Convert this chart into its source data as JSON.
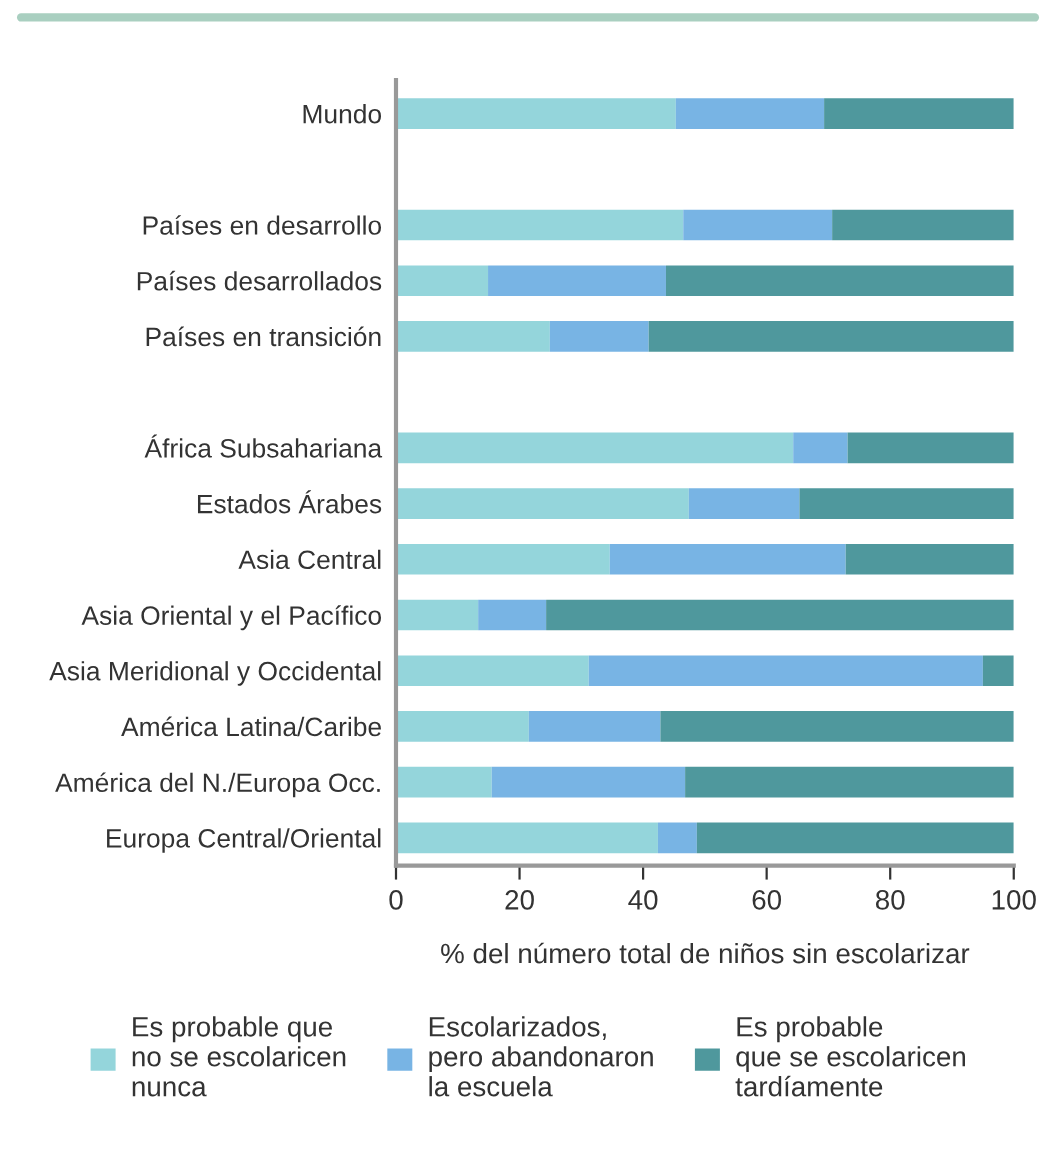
{
  "chart_data": {
    "type": "bar",
    "orientation": "horizontal",
    "stacked": true,
    "categories": [
      "Mundo",
      null,
      "Países en desarrollo",
      "Países desarrollados",
      "Países en transición",
      null,
      "África Subsahariana",
      "Estados Árabes",
      "Asia Central",
      "Asia Oriental y el Pacífico",
      "Asia Meridional y Occidental",
      "América Latina/Caribe",
      "América del N./Europa Occ.",
      "Europa Central/Oriental"
    ],
    "series": [
      {
        "name": "Es probable que\nno se escolaricen\nnunca",
        "color": "#94d5db",
        "values": [
          45.3,
          null,
          46.5,
          14.9,
          24.9,
          null,
          64.3,
          47.4,
          34.6,
          13.3,
          31.2,
          21.5,
          15.5,
          42.4
        ]
      },
      {
        "name": "Escolarizados,\npero abandonaron\nla escuela",
        "color": "#78b4e4",
        "values": [
          24.0,
          null,
          24.1,
          28.8,
          16.0,
          null,
          8.8,
          17.9,
          38.2,
          11.0,
          63.8,
          21.3,
          31.3,
          6.3
        ]
      },
      {
        "name": "Es probable\nque se escolaricen\ntardíamente",
        "color": "#4f989d",
        "values": [
          30.7,
          null,
          29.4,
          56.3,
          59.1,
          null,
          26.9,
          34.7,
          27.2,
          75.7,
          5.0,
          57.2,
          53.2,
          51.3
        ]
      }
    ],
    "xlabel": "% del número total de niños sin escolarizar",
    "xlim": [
      0,
      100
    ],
    "xticks": [
      0,
      20,
      40,
      60,
      80,
      100
    ],
    "grid": false,
    "legend": "bottom"
  }
}
